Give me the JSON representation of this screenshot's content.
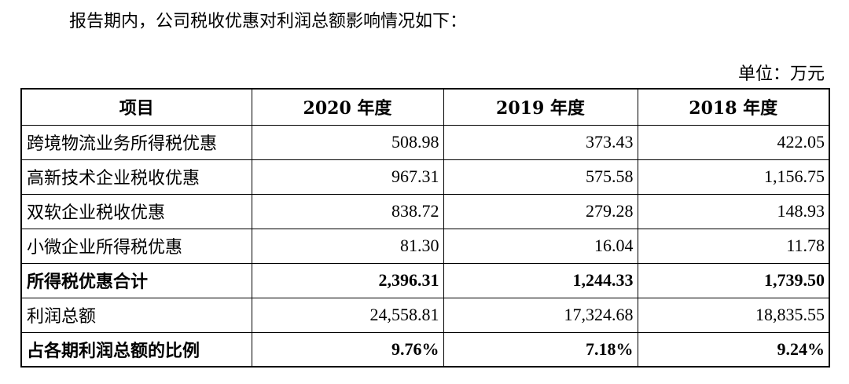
{
  "intro_text": "报告期内，公司税收优惠对利润总额影响情况如下：",
  "unit_label": "单位：万元",
  "table": {
    "headers": [
      "项目",
      "2020 年度",
      "2019 年度",
      "2018 年度"
    ],
    "rows": [
      {
        "label": "跨境物流业务所得税优惠",
        "values": [
          "508.98",
          "373.43",
          "422.05"
        ],
        "bold": false
      },
      {
        "label": "高新技术企业税收优惠",
        "values": [
          "967.31",
          "575.58",
          "1,156.75"
        ],
        "bold": false
      },
      {
        "label": "双软企业税收优惠",
        "values": [
          "838.72",
          "279.28",
          "148.93"
        ],
        "bold": false
      },
      {
        "label": "小微企业所得税优惠",
        "values": [
          "81.30",
          "16.04",
          "11.78"
        ],
        "bold": false
      },
      {
        "label": "所得税优惠合计",
        "values": [
          "2,396.31",
          "1,244.33",
          "1,739.50"
        ],
        "bold": true
      },
      {
        "label": "利润总额",
        "values": [
          "24,558.81",
          "17,324.68",
          "18,835.55"
        ],
        "bold": false
      },
      {
        "label": "占各期利润总额的比例",
        "values": [
          "9.76%",
          "7.18%",
          "9.24%"
        ],
        "bold": true
      }
    ]
  }
}
